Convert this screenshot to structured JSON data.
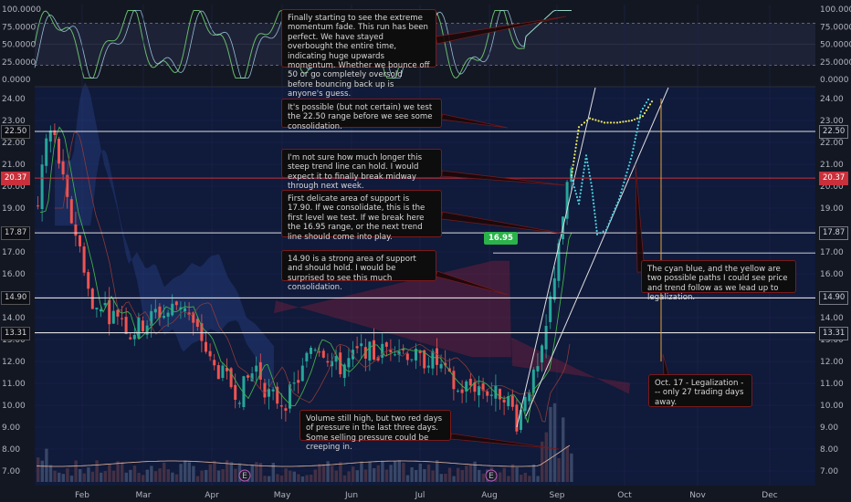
{
  "chart_data": {
    "type": "candlestick",
    "x_ticks": [
      "Feb",
      "Mar",
      "Apr",
      "May",
      "Jun",
      "Jul",
      "Aug",
      "Sep",
      "Oct",
      "Nov",
      "Dec"
    ],
    "oscillator": {
      "y_ticks": [
        "100.0000",
        "75.0000",
        "50.0000",
        "25.0000",
        "0.0000"
      ],
      "band": [
        20,
        80
      ]
    },
    "price": {
      "y_ticks": [
        "24.00",
        "23.00",
        "22.00",
        "21.00",
        "20.00",
        "19.00",
        "18.00",
        "17.00",
        "16.00",
        "15.00",
        "14.00",
        "13.00",
        "12.00",
        "11.00",
        "10.00",
        "9.00",
        "8.00",
        "7.00"
      ],
      "ylim": [
        6.5,
        24.5
      ],
      "levels": [
        {
          "label": "22.50",
          "value": 22.5
        },
        {
          "label": "20.37",
          "value": 20.37,
          "highlight": true
        },
        {
          "label": "17.87",
          "value": 17.87
        },
        {
          "label": "14.90",
          "value": 14.9
        },
        {
          "label": "13.31",
          "value": 13.31
        }
      ],
      "marker_label": "16.95",
      "event_markers": [
        "E",
        "E"
      ]
    },
    "annotations": [
      "Finally starting to see the extreme momentum fade. This run has been perfect. We have stayed overbought the entire time, indicating huge upwards momentum. Whether we bounce off 50 or go completely oversold before bouncing back up is anyone's guess.",
      "It's possible (but not certain) we test the 22.50 range before we see some consolidation.",
      "I'm not sure how much longer this steep trend line can hold. I would expect it to finally break midway through next week.",
      "First delicate area of support is 17.90. If we consolidate, this is the first level we test. If we break here the 16.95 range, or the next trend line should come into play.",
      "14.90 is a strong area of support and should hold. I would be surprised to see this much consolidation.",
      "Volume still high, but two red days of pressure in the last three days. Some selling pressure could be creeping in.",
      "The cyan blue, and the yellow are two possible paths I could see price and trend follow as we lead up to legalization.",
      "Oct. 17 - Legalization --- only 27 trading days away."
    ],
    "colors": {
      "up": "#26a69a",
      "down": "#ef5350",
      "cyan": "#4dd0e1",
      "yellow": "#e6e65a",
      "green_line": "#3fb04a",
      "level": "#e0e0e0",
      "highlight": "#c9303b"
    }
  }
}
